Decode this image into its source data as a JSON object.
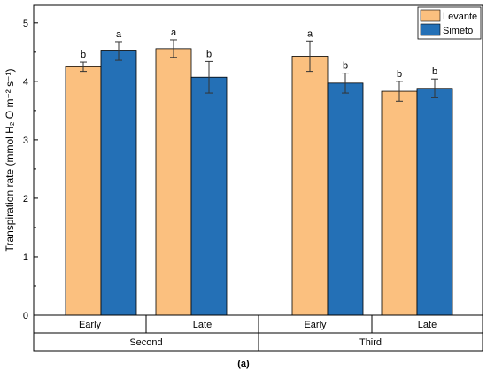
{
  "chart_data": {
    "type": "bar",
    "ylabel": "Transpiration rate (mmol H₂ O m⁻² s⁻¹)",
    "ylim": [
      0,
      5.3
    ],
    "yticks": [
      "0",
      "1",
      "2",
      "3",
      "4",
      "5"
    ],
    "grid": false,
    "legend_position": "top-right",
    "colors": {
      "Levante": "#FBC07F",
      "Simeto": "#2470B6"
    },
    "groups": [
      {
        "label": "Second",
        "bars": [
          {
            "label": "Early",
            "values": {
              "Levante": 4.25,
              "Simeto": 4.52
            },
            "errors": {
              "Levante": 0.08,
              "Simeto": 0.16
            },
            "sig": {
              "Levante": "b",
              "Simeto": "a"
            }
          },
          {
            "label": "Late",
            "values": {
              "Levante": 4.56,
              "Simeto": 4.07
            },
            "errors": {
              "Levante": 0.15,
              "Simeto": 0.27
            },
            "sig": {
              "Levante": "a",
              "Simeto": "b"
            }
          }
        ]
      },
      {
        "label": "Third",
        "bars": [
          {
            "label": "Early",
            "values": {
              "Levante": 4.43,
              "Simeto": 3.97
            },
            "errors": {
              "Levante": 0.26,
              "Simeto": 0.17
            },
            "sig": {
              "Levante": "a",
              "Simeto": "b"
            }
          },
          {
            "label": "Late",
            "values": {
              "Levante": 3.83,
              "Simeto": 3.88
            },
            "errors": {
              "Levante": 0.17,
              "Simeto": 0.16
            },
            "sig": {
              "Levante": "b",
              "Simeto": "b"
            }
          }
        ]
      }
    ],
    "series": [
      {
        "name": "Levante"
      },
      {
        "name": "Simeto"
      }
    ]
  },
  "caption": "(a)"
}
